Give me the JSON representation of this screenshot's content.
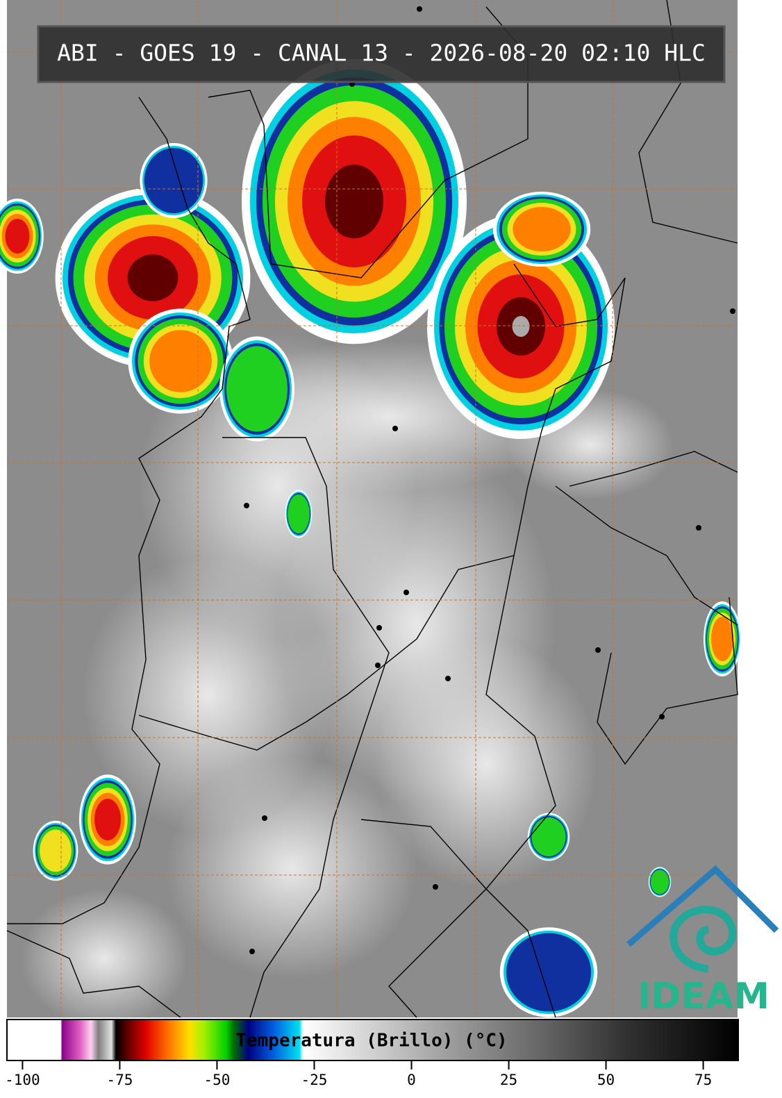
{
  "header": {
    "title": "ABI - GOES 19 - CANAL 13 - 2026-08-20 02:10 HLC"
  },
  "colorbar": {
    "label": "Temperatura (Brillo) (°C)",
    "xlim": [
      -104,
      84
    ],
    "xticks": [
      -100,
      -75,
      -50,
      -25,
      0,
      25,
      50,
      75
    ]
  },
  "logo": {
    "text": "IDEAM"
  }
}
